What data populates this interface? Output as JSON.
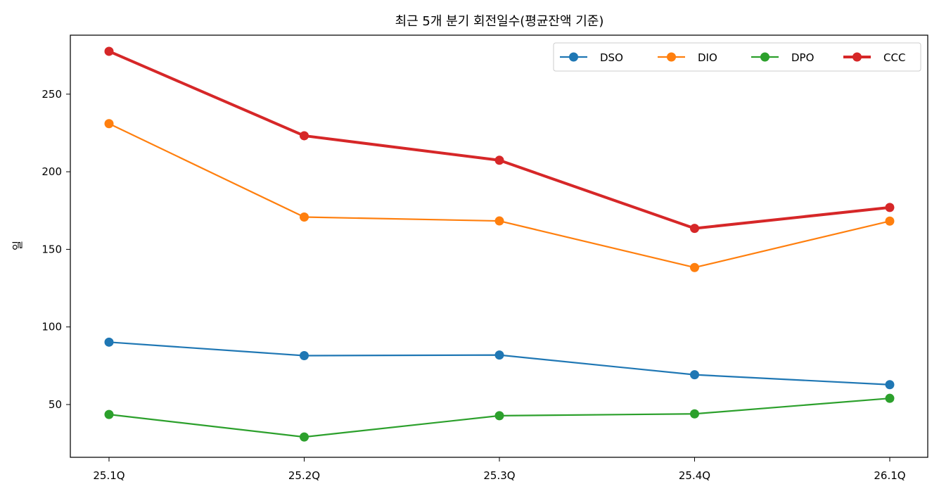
{
  "chart_data": {
    "type": "line",
    "title": "최근 5개 분기 회전일수(평균잔액 기준)",
    "xlabel": "",
    "ylabel": "일",
    "categories": [
      "25.1Q",
      "25.2Q",
      "25.3Q",
      "25.4Q",
      "26.1Q"
    ],
    "ylim": [
      16,
      288
    ],
    "yticks": [
      50,
      100,
      150,
      200,
      250
    ],
    "grid": false,
    "legend": "top-right",
    "series": [
      {
        "name": "DSO",
        "color": "#1f77b4",
        "values": [
          90.2,
          81.5,
          81.9,
          69.2,
          62.8
        ]
      },
      {
        "name": "DIO",
        "color": "#ff7f0e",
        "values": [
          231.0,
          170.8,
          168.3,
          138.3,
          168.2
        ]
      },
      {
        "name": "DPO",
        "color": "#2ca02c",
        "values": [
          43.6,
          29.1,
          42.8,
          44.0,
          54.0
        ]
      },
      {
        "name": "CCC",
        "color": "#d62728",
        "values": [
          277.6,
          223.2,
          207.4,
          163.5,
          177.0
        ]
      }
    ]
  }
}
